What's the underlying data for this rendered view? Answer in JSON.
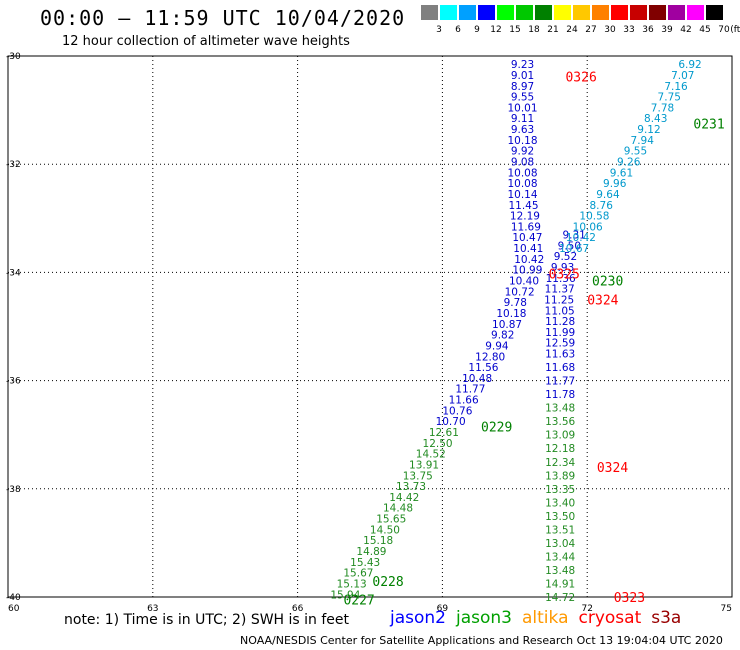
{
  "header": {
    "title": "00:00 – 11:59 UTC 10/04/2020",
    "subtitle": "12 hour collection of altimeter wave heights"
  },
  "color_scale": {
    "unit": "(ft)",
    "bins": [
      {
        "label": "3",
        "color": "#808080"
      },
      {
        "label": "6",
        "color": "#00ffff"
      },
      {
        "label": "9",
        "color": "#00a0ff"
      },
      {
        "label": "12",
        "color": "#0000ff"
      },
      {
        "label": "15",
        "color": "#00ff00"
      },
      {
        "label": "18",
        "color": "#00c800"
      },
      {
        "label": "21",
        "color": "#008000"
      },
      {
        "label": "24",
        "color": "#ffff00"
      },
      {
        "label": "27",
        "color": "#ffc800"
      },
      {
        "label": "30",
        "color": "#ff8000"
      },
      {
        "label": "33",
        "color": "#ff0000"
      },
      {
        "label": "36",
        "color": "#c80000"
      },
      {
        "label": "39",
        "color": "#800000"
      },
      {
        "label": "42",
        "color": "#a000a0"
      },
      {
        "label": "45",
        "color": "#ff00ff"
      },
      {
        "label": "70",
        "color": "#000000"
      }
    ]
  },
  "map": {
    "lon_range": [
      60,
      75
    ],
    "lat_range": [
      -40,
      -30
    ],
    "lon_ticks": [
      "60",
      "63",
      "66",
      "69",
      "72",
      "75"
    ],
    "lat_ticks": [
      "-30",
      "-32",
      "-34",
      "-36",
      "-38",
      "-40"
    ],
    "grid": "dotted"
  },
  "chart_data": {
    "type": "scatter",
    "x_axis": "longitude",
    "y_axis": "latitude",
    "series": [
      {
        "mission": "jason2",
        "color": "#0000cc",
        "points": [
          {
            "lon": 70.66,
            "lat": -30.15,
            "v": "9.23"
          },
          {
            "lon": 70.66,
            "lat": -30.35,
            "v": "9.01"
          },
          {
            "lon": 70.66,
            "lat": -30.55,
            "v": "8.97"
          },
          {
            "lon": 70.66,
            "lat": -30.75,
            "v": "9.55"
          },
          {
            "lon": 70.66,
            "lat": -30.95,
            "v": "10.01"
          },
          {
            "lon": 70.66,
            "lat": -31.15,
            "v": "9.11"
          },
          {
            "lon": 70.66,
            "lat": -31.35,
            "v": "9.63"
          },
          {
            "lon": 70.66,
            "lat": -31.55,
            "v": "10.18"
          },
          {
            "lon": 70.66,
            "lat": -31.75,
            "v": "9.92"
          },
          {
            "lon": 70.66,
            "lat": -31.95,
            "v": "9.08"
          },
          {
            "lon": 70.66,
            "lat": -32.15,
            "v": "10.08"
          },
          {
            "lon": 70.66,
            "lat": -32.35,
            "v": "10.08"
          },
          {
            "lon": 70.66,
            "lat": -32.55,
            "v": "10.14"
          },
          {
            "lon": 70.68,
            "lat": -32.75,
            "v": "11.45"
          },
          {
            "lon": 70.71,
            "lat": -32.95,
            "v": "12.19"
          },
          {
            "lon": 70.73,
            "lat": -33.15,
            "v": "11.69"
          },
          {
            "lon": 70.76,
            "lat": -33.35,
            "v": "10.47"
          },
          {
            "lon": 70.78,
            "lat": -33.55,
            "v": "10.41"
          },
          {
            "lon": 70.8,
            "lat": -33.75,
            "v": "10.42"
          },
          {
            "lon": 70.76,
            "lat": -33.95,
            "v": "10.99"
          },
          {
            "lon": 70.69,
            "lat": -34.15,
            "v": "10.40"
          },
          {
            "lon": 70.6,
            "lat": -34.35,
            "v": "10.72"
          },
          {
            "lon": 70.51,
            "lat": -34.55,
            "v": "9.78"
          },
          {
            "lon": 70.43,
            "lat": -34.75,
            "v": "10.18"
          },
          {
            "lon": 70.34,
            "lat": -34.95,
            "v": "10.87"
          },
          {
            "lon": 70.25,
            "lat": -35.15,
            "v": "9.82"
          },
          {
            "lon": 70.13,
            "lat": -35.35,
            "v": "9.94"
          },
          {
            "lon": 69.99,
            "lat": -35.55,
            "v": "12.80"
          },
          {
            "lon": 69.85,
            "lat": -35.75,
            "v": "11.56"
          },
          {
            "lon": 69.72,
            "lat": -35.95,
            "v": "10.48"
          },
          {
            "lon": 69.58,
            "lat": -36.15,
            "v": "11.77"
          },
          {
            "lon": 69.44,
            "lat": -36.35,
            "v": "11.66"
          },
          {
            "lon": 69.31,
            "lat": -36.55,
            "v": "10.76"
          },
          {
            "lon": 69.17,
            "lat": -36.75,
            "v": "10.70"
          },
          {
            "lon": 71.73,
            "lat": -33.3,
            "v": "9.31"
          },
          {
            "lon": 71.63,
            "lat": -33.5,
            "v": "9.50"
          },
          {
            "lon": 71.55,
            "lat": -33.7,
            "v": "9.52"
          },
          {
            "lon": 71.49,
            "lat": -33.9,
            "v": "9.93"
          },
          {
            "lon": 71.45,
            "lat": -34.1,
            "v": "11.36"
          },
          {
            "lon": 71.43,
            "lat": -34.3,
            "v": "11.37"
          },
          {
            "lon": 71.42,
            "lat": -34.5,
            "v": "11.25"
          },
          {
            "lon": 71.43,
            "lat": -34.7,
            "v": "11.05"
          },
          {
            "lon": 71.44,
            "lat": -34.9,
            "v": "11.28"
          },
          {
            "lon": 71.44,
            "lat": -35.1,
            "v": "11.99"
          },
          {
            "lon": 71.44,
            "lat": -35.3,
            "v": "12.59"
          },
          {
            "lon": 71.44,
            "lat": -35.5,
            "v": "11.63"
          },
          {
            "lon": 71.44,
            "lat": -35.75,
            "v": "11.68"
          },
          {
            "lon": 71.44,
            "lat": -36.0,
            "v": "11.77"
          },
          {
            "lon": 71.44,
            "lat": -36.25,
            "v": "11.78"
          }
        ]
      },
      {
        "mission": "jason3",
        "color": "#228b22",
        "points": [
          {
            "lon": 69.03,
            "lat": -36.95,
            "v": "12.61"
          },
          {
            "lon": 68.9,
            "lat": -37.15,
            "v": "12.50"
          },
          {
            "lon": 68.76,
            "lat": -37.35,
            "v": "14.52"
          },
          {
            "lon": 68.62,
            "lat": -37.55,
            "v": "13.91"
          },
          {
            "lon": 68.49,
            "lat": -37.75,
            "v": "13.75"
          },
          {
            "lon": 68.35,
            "lat": -37.95,
            "v": "13.73"
          },
          {
            "lon": 68.21,
            "lat": -38.15,
            "v": "14.42"
          },
          {
            "lon": 68.08,
            "lat": -38.35,
            "v": "14.48"
          },
          {
            "lon": 67.94,
            "lat": -38.55,
            "v": "15.65"
          },
          {
            "lon": 67.81,
            "lat": -38.75,
            "v": "14.50"
          },
          {
            "lon": 67.67,
            "lat": -38.95,
            "v": "15.18"
          },
          {
            "lon": 67.53,
            "lat": -39.15,
            "v": "14.89"
          },
          {
            "lon": 67.4,
            "lat": -39.35,
            "v": "15.43"
          },
          {
            "lon": 67.26,
            "lat": -39.55,
            "v": "15.67"
          },
          {
            "lon": 67.12,
            "lat": -39.75,
            "v": "15.13"
          },
          {
            "lon": 66.99,
            "lat": -39.95,
            "v": "15.94"
          },
          {
            "lon": 71.44,
            "lat": -36.5,
            "v": "13.48"
          },
          {
            "lon": 71.44,
            "lat": -36.75,
            "v": "13.56"
          },
          {
            "lon": 71.44,
            "lat": -37.0,
            "v": "13.09"
          },
          {
            "lon": 71.44,
            "lat": -37.25,
            "v": "12.18"
          },
          {
            "lon": 71.44,
            "lat": -37.5,
            "v": "12.34"
          },
          {
            "lon": 71.44,
            "lat": -37.75,
            "v": "13.89"
          },
          {
            "lon": 71.44,
            "lat": -38.0,
            "v": "13.35"
          },
          {
            "lon": 71.44,
            "lat": -38.25,
            "v": "13.40"
          },
          {
            "lon": 71.44,
            "lat": -38.5,
            "v": "13.50"
          },
          {
            "lon": 71.44,
            "lat": -38.75,
            "v": "13.51"
          },
          {
            "lon": 71.44,
            "lat": -39.0,
            "v": "13.04"
          },
          {
            "lon": 71.44,
            "lat": -39.25,
            "v": "13.44"
          },
          {
            "lon": 71.44,
            "lat": -39.5,
            "v": "13.48"
          },
          {
            "lon": 71.44,
            "lat": -39.75,
            "v": "14.91"
          },
          {
            "lon": 71.44,
            "lat": -40.0,
            "v": "14.72"
          }
        ]
      },
      {
        "mission": "altika",
        "color": "#0099cc",
        "points": [
          {
            "lon": 74.13,
            "lat": -30.15,
            "v": "6.92"
          },
          {
            "lon": 73.98,
            "lat": -30.35,
            "v": "7.07"
          },
          {
            "lon": 73.84,
            "lat": -30.55,
            "v": "7.16"
          },
          {
            "lon": 73.7,
            "lat": -30.75,
            "v": "7.75"
          },
          {
            "lon": 73.56,
            "lat": -30.95,
            "v": "7.78"
          },
          {
            "lon": 73.42,
            "lat": -31.15,
            "v": "8.43"
          },
          {
            "lon": 73.28,
            "lat": -31.35,
            "v": "9.12"
          },
          {
            "lon": 73.14,
            "lat": -31.55,
            "v": "7.94"
          },
          {
            "lon": 73.0,
            "lat": -31.75,
            "v": "9.55"
          },
          {
            "lon": 72.86,
            "lat": -31.95,
            "v": "9.26"
          },
          {
            "lon": 72.71,
            "lat": -32.15,
            "v": "9.61"
          },
          {
            "lon": 72.57,
            "lat": -32.35,
            "v": "9.96"
          },
          {
            "lon": 72.43,
            "lat": -32.55,
            "v": "9.64"
          },
          {
            "lon": 72.29,
            "lat": -32.75,
            "v": "8.76"
          },
          {
            "lon": 72.15,
            "lat": -32.95,
            "v": "10.58"
          },
          {
            "lon": 72.01,
            "lat": -33.15,
            "v": "10.06"
          },
          {
            "lon": 71.87,
            "lat": -33.35,
            "v": "10.42"
          },
          {
            "lon": 71.73,
            "lat": -33.55,
            "v": "10.67"
          }
        ]
      }
    ],
    "pass_times": [
      {
        "label": "0326",
        "lon": 71.55,
        "lat": -30.38,
        "color": "#ff0000"
      },
      {
        "label": "0231",
        "lon": 74.2,
        "lat": -31.25,
        "color": "#008000"
      },
      {
        "label": "0325",
        "lon": 71.2,
        "lat": -34.02,
        "color": "#ff0000"
      },
      {
        "label": "0230",
        "lon": 72.1,
        "lat": -34.15,
        "color": "#008000"
      },
      {
        "lon": 72.0,
        "lat": -34.5,
        "label": "0324",
        "color": "#ff0000"
      },
      {
        "label": "0229",
        "lon": 69.8,
        "lat": -36.85,
        "color": "#008000"
      },
      {
        "label": "0324",
        "lon": 72.2,
        "lat": -37.6,
        "color": "#ff0000"
      },
      {
        "label": "0228",
        "lon": 67.55,
        "lat": -39.7,
        "color": "#008000"
      },
      {
        "label": "0227",
        "lon": 66.95,
        "lat": -40.05,
        "color": "#008000"
      },
      {
        "label": "0323",
        "lon": 72.55,
        "lat": -40.0,
        "color": "#ff0000"
      }
    ]
  },
  "note": "note: 1) Time is in UTC; 2) SWH is in feet",
  "legend": [
    {
      "label": "jason2",
      "color": "#0000ff"
    },
    {
      "label": "jason3",
      "color": "#00a000"
    },
    {
      "label": "altika",
      "color": "#ff9900"
    },
    {
      "label": "cryosat",
      "color": "#ff0000"
    },
    {
      "label": "s3a",
      "color": "#990000"
    }
  ],
  "footer": "NOAA/NESDIS Center for Satellite Applications and Research    Oct 13 19:04:04 UTC 2020"
}
